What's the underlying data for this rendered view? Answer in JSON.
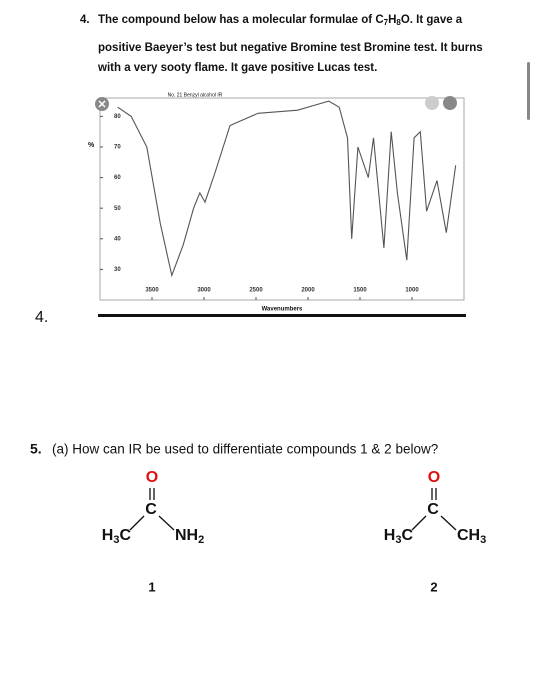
{
  "question4": {
    "number": "4.",
    "text_a": "The compound below has a molecular formulae of C",
    "sub_c": "7",
    "h": "H",
    "sub_h": "8",
    "text_b": "O. It gave a",
    "line2": "positive Baeyer’s test but negative Bromine test Bromine test. It burns",
    "line3": "with a very sooty flame.  It gave positive Lucas test.",
    "side_number": "4."
  },
  "chart_data": {
    "type": "line",
    "title": "No. 21 Benzyl alcohol IR",
    "x_label": "Wavenumbers",
    "y_label": "%",
    "x": [
      3830,
      3700,
      3550,
      3420,
      3310,
      3200,
      3100,
      3040,
      2990,
      2890,
      2750,
      2480,
      2100,
      1900,
      1800,
      1700,
      1620,
      1580,
      1520,
      1420,
      1370,
      1270,
      1200,
      1140,
      1050,
      980,
      920,
      860,
      760,
      670,
      580
    ],
    "series": [
      {
        "color": "#555555",
        "values": [
          83,
          80,
          70,
          45,
          28,
          38,
          50,
          55,
          52,
          62,
          77,
          81,
          82,
          84,
          85,
          83,
          73,
          40,
          70,
          60,
          73,
          37,
          75,
          55,
          33,
          73,
          75,
          49,
          59,
          42,
          64
        ]
      }
    ],
    "xlim": [
      4000,
      500
    ],
    "xticks": [
      3500,
      3000,
      2500,
      2000,
      1500,
      1000
    ],
    "ylim": [
      20,
      86
    ],
    "yticks": [
      30,
      40,
      50,
      60,
      70,
      80
    ]
  },
  "question5": {
    "number": "5.",
    "text": "(a) How can IR be used to differentiate compounds 1 & 2 below?"
  },
  "molecules": [
    {
      "oxygen": "O",
      "carbon": "C",
      "left": [
        "H",
        "3",
        "C"
      ],
      "right": [
        "NH",
        "2"
      ],
      "label": "1"
    },
    {
      "oxygen": "O",
      "carbon": "C",
      "left": [
        "H",
        "3",
        "C"
      ],
      "right": [
        "CH",
        "3"
      ],
      "label": "2"
    }
  ]
}
